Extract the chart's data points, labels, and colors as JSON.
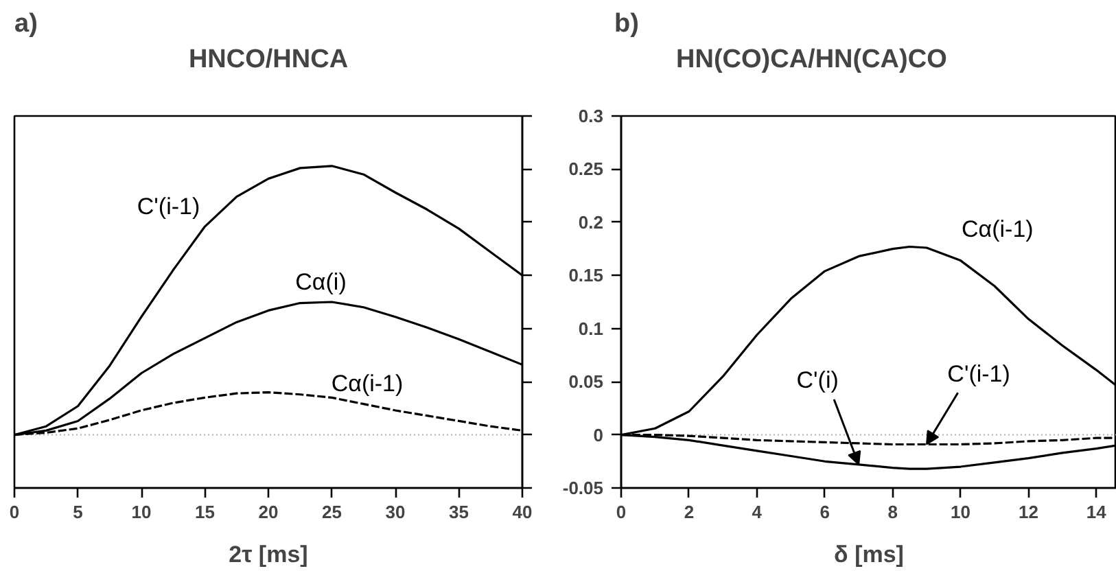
{
  "chart_data": [
    {
      "type": "line",
      "title": "HNCO/HNCA",
      "xlabel": "2τ [ms]",
      "xlim": [
        0,
        40
      ],
      "xticks": [
        0,
        5,
        10,
        15,
        20,
        25,
        30,
        35,
        40
      ],
      "ylim": [
        -0.05,
        0.3
      ],
      "yticks": [
        -0.05,
        0,
        0.05,
        0.1,
        0.15,
        0.2,
        0.25,
        0.3
      ],
      "tick_labels": "x",
      "grid": false,
      "legend": false,
      "x": [
        0,
        2.5,
        5,
        7.5,
        10,
        12.5,
        15,
        17.5,
        20,
        22.5,
        25,
        27.5,
        30,
        32.5,
        35,
        37.5,
        40
      ],
      "series": [
        {
          "name": "C'(i-1)",
          "color": "#000000",
          "line_style": "solid",
          "values": [
            0,
            0.008,
            0.027,
            0.065,
            0.111,
            0.155,
            0.196,
            0.224,
            0.241,
            0.251,
            0.253,
            0.245,
            0.228,
            0.212,
            0.194,
            0.172,
            0.15
          ]
        },
        {
          "name": "Cα(i)",
          "color": "#000000",
          "line_style": "solid",
          "values": [
            0,
            0.004,
            0.013,
            0.034,
            0.058,
            0.076,
            0.091,
            0.106,
            0.117,
            0.124,
            0.125,
            0.12,
            0.111,
            0.101,
            0.09,
            0.078,
            0.066
          ]
        },
        {
          "name": "Cα(i-1)",
          "color": "#000000",
          "line_style": "dashed",
          "values": [
            0,
            0.002,
            0.006,
            0.014,
            0.023,
            0.03,
            0.035,
            0.039,
            0.04,
            0.038,
            0.035,
            0.029,
            0.023,
            0.018,
            0.013,
            0.008,
            0.004
          ]
        }
      ],
      "ref_lines": [
        {
          "axis": "y",
          "value": 0,
          "color": "#b0b0b0",
          "line_style": "dotted"
        }
      ],
      "annotations": [
        "a)"
      ]
    },
    {
      "type": "line",
      "title": "HN(CO)CA/HN(CA)CO",
      "xlabel": "δ [ms]",
      "xlim": [
        0,
        14.6
      ],
      "xticks": [
        0,
        2,
        4,
        6,
        8,
        10,
        12,
        14
      ],
      "ylim": [
        -0.05,
        0.3
      ],
      "yticks": [
        -0.05,
        0,
        0.05,
        0.1,
        0.15,
        0.2,
        0.25,
        0.3
      ],
      "grid": false,
      "legend": false,
      "x": [
        0,
        1,
        2,
        3,
        4,
        5,
        6,
        7,
        8,
        8.5,
        9,
        10,
        11,
        12,
        13,
        14,
        14.6
      ],
      "series": [
        {
          "name": "Cα(i-1)",
          "color": "#000000",
          "line_style": "solid",
          "values": [
            0,
            0.006,
            0.022,
            0.055,
            0.094,
            0.128,
            0.154,
            0.168,
            0.175,
            0.177,
            0.176,
            0.164,
            0.14,
            0.109,
            0.084,
            0.061,
            0.046
          ]
        },
        {
          "name": "C'(i)",
          "color": "#000000",
          "line_style": "solid",
          "values": [
            0,
            -0.002,
            -0.005,
            -0.01,
            -0.015,
            -0.02,
            -0.025,
            -0.028,
            -0.031,
            -0.032,
            -0.032,
            -0.03,
            -0.026,
            -0.022,
            -0.017,
            -0.013,
            -0.01
          ]
        },
        {
          "name": "C'(i-1)",
          "color": "#000000",
          "line_style": "dashed",
          "values": [
            0,
            0,
            -0.001,
            -0.003,
            -0.005,
            -0.006,
            -0.007,
            -0.008,
            -0.009,
            -0.009,
            -0.009,
            -0.009,
            -0.008,
            -0.006,
            -0.005,
            -0.003,
            -0.003
          ]
        }
      ],
      "ref_lines": [
        {
          "axis": "y",
          "value": 0,
          "color": "#b0b0b0",
          "line_style": "dotted"
        }
      ],
      "annotations": [
        "b)"
      ]
    }
  ]
}
